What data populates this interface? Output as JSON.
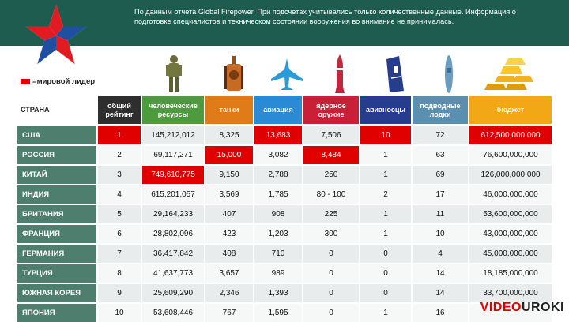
{
  "header": {
    "notice": "По данным отчета Global Firepower. При подсчетах учитывались только количественные данные. Информация о подготовке специалистов и техническом состоянии вооружения во внимание не принималась."
  },
  "legend": {
    "label": "мировой лидер",
    "color": "#e00000"
  },
  "columns": [
    {
      "label": "СТРАНА",
      "color": "#ffffff"
    },
    {
      "label": "общий рейтинг",
      "color": "#2e2e2e"
    },
    {
      "label": "человеческие ресурсы",
      "color": "#4e9a3e"
    },
    {
      "label": "танки",
      "color": "#e07b1a"
    },
    {
      "label": "авиация",
      "color": "#2b8ad4"
    },
    {
      "label": "ядерное оружие",
      "color": "#c92038"
    },
    {
      "label": "авианосцы",
      "color": "#253d8c"
    },
    {
      "label": "подводные лодки",
      "color": "#5b8fb0"
    },
    {
      "label": "бюджет",
      "color": "#f2a716"
    }
  ],
  "icons": [
    "soldier-icon",
    "tank-icon",
    "jet-icon",
    "missile-icon",
    "aircraft-carrier-icon",
    "submarine-icon",
    "gold-bars-icon"
  ],
  "rows": [
    {
      "country": "США",
      "rank": "1",
      "people": "145,212,012",
      "tanks": "8,325",
      "air": "13,683",
      "nuclear": "7,506",
      "carriers": "10",
      "subs": "72",
      "budget": "612,500,000,000",
      "hl": [
        "rank",
        "air",
        "carriers",
        "budget"
      ]
    },
    {
      "country": "РОССИЯ",
      "rank": "2",
      "people": "69,117,271",
      "tanks": "15,000",
      "air": "3,082",
      "nuclear": "8,484",
      "carriers": "1",
      "subs": "63",
      "budget": "76,600,000,000",
      "hl": [
        "tanks",
        "nuclear"
      ]
    },
    {
      "country": "КИТАЙ",
      "rank": "3",
      "people": "749,610,775",
      "tanks": "9,150",
      "air": "2,788",
      "nuclear": "250",
      "carriers": "1",
      "subs": "69",
      "budget": "126,000,000,000",
      "hl": [
        "people"
      ]
    },
    {
      "country": "ИНДИЯ",
      "rank": "4",
      "people": "615,201,057",
      "tanks": "3,569",
      "air": "1,785",
      "nuclear": "80 - 100",
      "carriers": "2",
      "subs": "17",
      "budget": "46,000,000,000",
      "hl": []
    },
    {
      "country": "БРИТАНИЯ",
      "rank": "5",
      "people": "29,164,233",
      "tanks": "407",
      "air": "908",
      "nuclear": "225",
      "carriers": "1",
      "subs": "11",
      "budget": "53,600,000,000",
      "hl": []
    },
    {
      "country": "ФРАНЦИЯ",
      "rank": "6",
      "people": "28,802,096",
      "tanks": "423",
      "air": "1,203",
      "nuclear": "300",
      "carriers": "1",
      "subs": "10",
      "budget": "43,000,000,000",
      "hl": []
    },
    {
      "country": "ГЕРМАНИЯ",
      "rank": "7",
      "people": "36,417,842",
      "tanks": "408",
      "air": "710",
      "nuclear": "0",
      "carriers": "0",
      "subs": "4",
      "budget": "45,000,000,000",
      "hl": []
    },
    {
      "country": "ТУРЦИЯ",
      "rank": "8",
      "people": "41,637,773",
      "tanks": "3,657",
      "air": "989",
      "nuclear": "0",
      "carriers": "0",
      "subs": "14",
      "budget": "18,185,000,000",
      "hl": []
    },
    {
      "country": "ЮЖНАЯ КОРЕЯ",
      "rank": "9",
      "people": "25,609,290",
      "tanks": "2,346",
      "air": "1,393",
      "nuclear": "0",
      "carriers": "0",
      "subs": "14",
      "budget": "33,700,000,000",
      "hl": []
    },
    {
      "country": "ЯПОНИЯ",
      "rank": "10",
      "people": "53,608,446",
      "tanks": "767",
      "air": "1,595",
      "nuclear": "0",
      "carriers": "1",
      "subs": "16",
      "budget": "",
      "hl": []
    }
  ],
  "brand": {
    "part1": "VIDEO",
    "part2": "UROKI"
  }
}
